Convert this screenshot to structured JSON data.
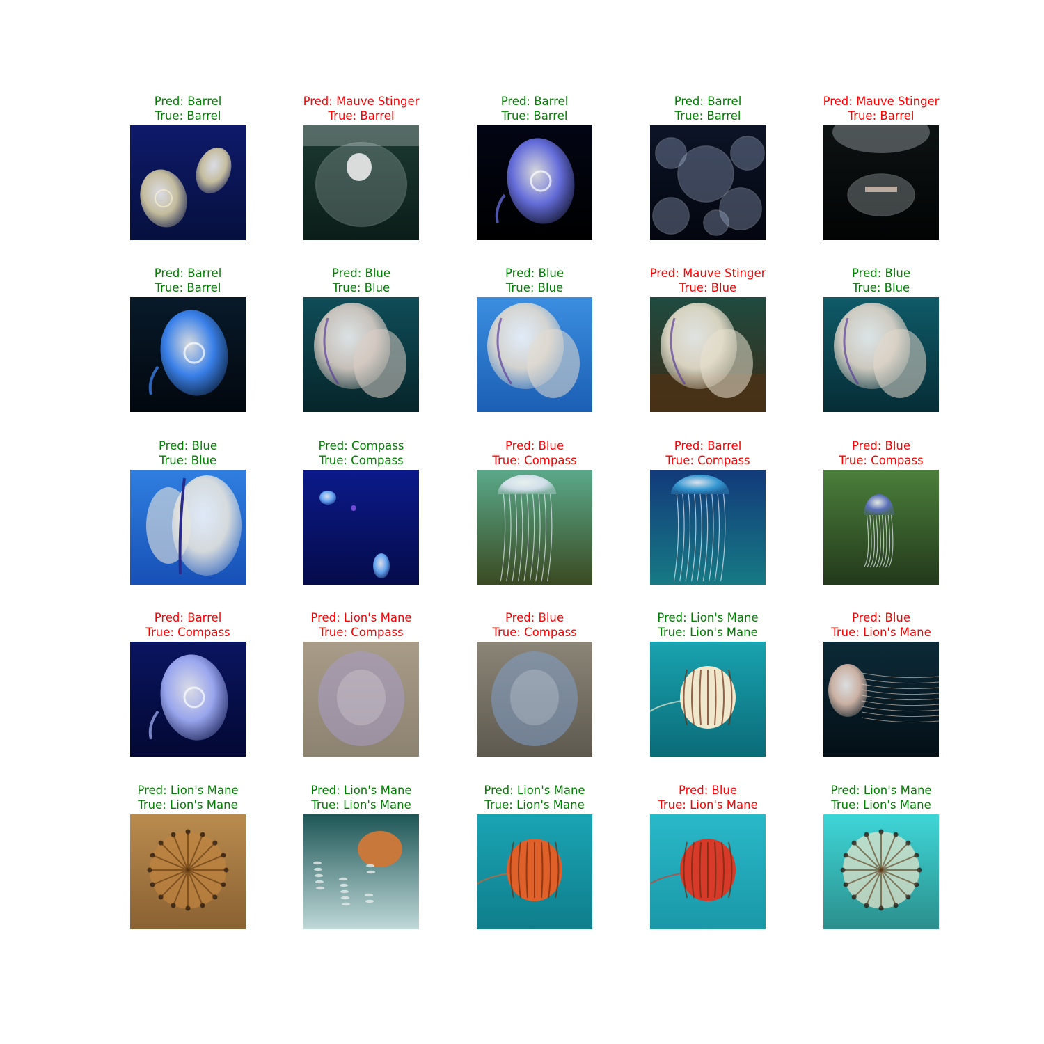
{
  "figure": {
    "colors": {
      "correct": "#008000",
      "incorrect": "#ff0000"
    },
    "samples": [
      {
        "pred": "Pred: Barrel",
        "true": "True: Barrel",
        "correct": true,
        "scene": {
          "bg": "#0e1a6a",
          "bg2": "#06103e",
          "jelly": "#d9cfa6",
          "style": "moon-pair",
          "label": "moon jellyfish pair"
        }
      },
      {
        "pred": "Pred: Mauve Stinger",
        "true": "True: Barrel",
        "correct": false,
        "scene": {
          "bg": "#1d3a33",
          "bg2": "#0b1d18",
          "jelly": "#c7d6d4",
          "style": "moon-big",
          "label": "large translucent jellyfish"
        }
      },
      {
        "pred": "Pred: Barrel",
        "true": "True: Barrel",
        "correct": true,
        "scene": {
          "bg": "#020514",
          "bg2": "#000000",
          "jelly": "#6f78f0",
          "style": "moon-single",
          "label": "blue moon jellyfish"
        }
      },
      {
        "pred": "Pred: Barrel",
        "true": "True: Barrel",
        "correct": true,
        "scene": {
          "bg": "#0c1426",
          "bg2": "#03060f",
          "jelly": "#b8c8ec",
          "style": "moon-swarm",
          "label": "swarm of moon jellyfish"
        }
      },
      {
        "pred": "Pred: Mauve Stinger",
        "true": "True: Barrel",
        "correct": false,
        "scene": {
          "bg": "#0d1212",
          "bg2": "#020404",
          "jelly": "#c8d2d6",
          "style": "moon-dark",
          "label": "jellyfish on dark water"
        }
      },
      {
        "pred": "Pred: Barrel",
        "true": "True: Barrel",
        "correct": true,
        "scene": {
          "bg": "#081a2a",
          "bg2": "#02070e",
          "jelly": "#3f8cff",
          "style": "moon-single",
          "label": "glowing blue jellyfish"
        }
      },
      {
        "pred": "Pred: Blue",
        "true": "True: Blue",
        "correct": true,
        "scene": {
          "bg": "#0f4d58",
          "bg2": "#06252a",
          "jelly": "#dccfc7",
          "style": "blue-big",
          "label": "blue jellyfish close-up"
        }
      },
      {
        "pred": "Pred: Blue",
        "true": "True: Blue",
        "correct": true,
        "scene": {
          "bg": "#3b8ee0",
          "bg2": "#1b5fb4",
          "jelly": "#e6ddd0",
          "style": "blue-big",
          "label": "blue jellyfish in blue water"
        }
      },
      {
        "pred": "Pred: Mauve Stinger",
        "true": "True: Blue",
        "correct": false,
        "scene": {
          "bg": "#1f4b40",
          "bg2": "#3b2a16",
          "jelly": "#eae2cf",
          "style": "blue-reef",
          "label": "jellyfish above seaweed"
        }
      },
      {
        "pred": "Pred: Blue",
        "true": "True: Blue",
        "correct": true,
        "scene": {
          "bg": "#0f5a68",
          "bg2": "#062d36",
          "jelly": "#e3d8cc",
          "style": "blue-big",
          "label": "blue jellyfish in teal water"
        }
      },
      {
        "pred": "Pred: Blue",
        "true": "True: Blue",
        "correct": true,
        "scene": {
          "bg": "#2f7fe0",
          "bg2": "#1750b6",
          "jelly": "#e8e6de",
          "style": "blue-side",
          "label": "blue jellyfish side view"
        }
      },
      {
        "pred": "Pred: Compass",
        "true": "True: Compass",
        "correct": true,
        "scene": {
          "bg": "#0b1a8a",
          "bg2": "#050b4a",
          "jelly": "#6fb4ff",
          "style": "small-pair",
          "label": "small jellyfish in deep blue"
        }
      },
      {
        "pred": "Pred: Blue",
        "true": "True: Compass",
        "correct": false,
        "scene": {
          "bg": "#5aa98a",
          "bg2": "#3a4a22",
          "jelly": "#dfe6f6",
          "style": "bell-tentacles",
          "label": "jellyfish over kelp"
        }
      },
      {
        "pred": "Pred: Barrel",
        "true": "True: Compass",
        "correct": false,
        "scene": {
          "bg": "#123a7a",
          "bg2": "#167a84",
          "jelly": "#3aa2dc",
          "style": "bell-tentacles",
          "label": "jellyfish with long tentacles"
        }
      },
      {
        "pred": "Pred: Blue",
        "true": "True: Compass",
        "correct": false,
        "scene": {
          "bg": "#4b7f3b",
          "bg2": "#23391b",
          "jelly": "#5d6fc8",
          "style": "small-bell",
          "label": "jellyfish in green kelp"
        }
      },
      {
        "pred": "Pred: Barrel",
        "true": "True: Compass",
        "correct": false,
        "scene": {
          "bg": "#0a1560",
          "bg2": "#030833",
          "jelly": "#a9b6ff",
          "style": "moon-single",
          "label": "moon jellyfish on blue"
        }
      },
      {
        "pred": "Pred: Lion's Mane",
        "true": "True: Compass",
        "correct": false,
        "scene": {
          "bg": "#a89c88",
          "bg2": "#8c8270",
          "jelly": "#a89cc8",
          "style": "stranded",
          "label": "stranded jellyfish on sand"
        }
      },
      {
        "pred": "Pred: Blue",
        "true": "True: Compass",
        "correct": false,
        "scene": {
          "bg": "#8b8577",
          "bg2": "#5e594f",
          "jelly": "#7f9fc9",
          "style": "stranded",
          "label": "blue jellyfish on sand"
        }
      },
      {
        "pred": "Pred: Lion's Mane",
        "true": "True: Lion's Mane",
        "correct": true,
        "scene": {
          "bg": "#19a3b0",
          "bg2": "#0b6b78",
          "jelly": "#f0e8cc",
          "style": "striped-bell",
          "label": "striped jellyfish in teal"
        }
      },
      {
        "pred": "Pred: Blue",
        "true": "True: Lion's Mane",
        "correct": false,
        "scene": {
          "bg": "#0c2a38",
          "bg2": "#040f16",
          "jelly": "#e0c0b0",
          "style": "lions-mane",
          "label": "lion's mane jellyfish"
        }
      },
      {
        "pred": "Pred: Lion's Mane",
        "true": "True: Lion's Mane",
        "correct": true,
        "scene": {
          "bg": "#b98b4e",
          "bg2": "#8a6132",
          "jelly": "#c08540",
          "style": "radial-top",
          "label": "compass jellyfish on sand"
        }
      },
      {
        "pred": "Pred: Lion's Mane",
        "true": "True: Lion's Mane",
        "correct": true,
        "scene": {
          "bg": "#1e5656",
          "bg2": "#bfd8d8",
          "jelly": "#c8783a",
          "style": "fish-school",
          "label": "jellyfish with fish"
        }
      },
      {
        "pred": "Pred: Lion's Mane",
        "true": "True: Lion's Mane",
        "correct": true,
        "scene": {
          "bg": "#1aa4b4",
          "bg2": "#0f7e8c",
          "jelly": "#e0602a",
          "style": "striped-bell",
          "label": "orange striped jellyfish"
        }
      },
      {
        "pred": "Pred: Blue",
        "true": "True: Lion's Mane",
        "correct": false,
        "scene": {
          "bg": "#29b8c8",
          "bg2": "#1a98a8",
          "jelly": "#d83a2a",
          "style": "striped-bell",
          "label": "red striped jellyfish"
        }
      },
      {
        "pred": "Pred: Lion's Mane",
        "true": "True: Lion's Mane",
        "correct": true,
        "scene": {
          "bg": "#3fd6d8",
          "bg2": "#2a8f8c",
          "jelly": "#f0e6cc",
          "style": "radial-top",
          "label": "compass jellyfish top view"
        }
      }
    ]
  }
}
